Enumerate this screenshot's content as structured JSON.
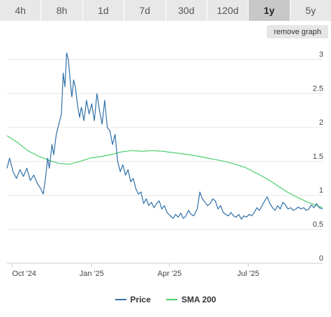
{
  "range_tabs": [
    {
      "label": "4h",
      "active": false
    },
    {
      "label": "8h",
      "active": false
    },
    {
      "label": "1d",
      "active": false
    },
    {
      "label": "7d",
      "active": false
    },
    {
      "label": "30d",
      "active": false
    },
    {
      "label": "120d",
      "active": false
    },
    {
      "label": "1y",
      "active": true
    },
    {
      "label": "5y",
      "active": false
    }
  ],
  "remove_graph_label": "remove graph",
  "colors": {
    "price": "#2f6fa8",
    "sma": "#4ccf6e",
    "grid": "#e6e6e6",
    "axis_text": "#444"
  },
  "chart_data": {
    "type": "line",
    "x_ticks": [
      "Oct '24",
      "Jan '25",
      "Apr '25",
      "Jul '25"
    ],
    "y_ticks": [
      "0",
      "0.5",
      "1",
      "1.5",
      "2",
      "2.5",
      "3"
    ],
    "ylim": [
      0,
      3.2
    ],
    "xlim": [
      "2024-09-25",
      "2025-09-25"
    ],
    "grid": true,
    "legend_position": "bottom",
    "series": [
      {
        "name": "Price",
        "points": [
          [
            "2024-09-25",
            1.4
          ],
          [
            "2024-09-28",
            1.55
          ],
          [
            "2024-10-02",
            1.35
          ],
          [
            "2024-10-06",
            1.25
          ],
          [
            "2024-10-10",
            1.38
          ],
          [
            "2024-10-14",
            1.28
          ],
          [
            "2024-10-18",
            1.4
          ],
          [
            "2024-10-22",
            1.22
          ],
          [
            "2024-10-26",
            1.3
          ],
          [
            "2024-10-30",
            1.18
          ],
          [
            "2024-11-03",
            1.1
          ],
          [
            "2024-11-06",
            1.02
          ],
          [
            "2024-11-09",
            1.3
          ],
          [
            "2024-11-11",
            1.55
          ],
          [
            "2024-11-13",
            1.4
          ],
          [
            "2024-11-16",
            1.75
          ],
          [
            "2024-11-18",
            1.6
          ],
          [
            "2024-11-21",
            1.9
          ],
          [
            "2024-11-24",
            2.05
          ],
          [
            "2024-11-27",
            2.2
          ],
          [
            "2024-11-29",
            2.8
          ],
          [
            "2024-12-01",
            2.6
          ],
          [
            "2024-12-03",
            3.1
          ],
          [
            "2024-12-05",
            3.0
          ],
          [
            "2024-12-07",
            2.7
          ],
          [
            "2024-12-09",
            2.45
          ],
          [
            "2024-12-11",
            2.7
          ],
          [
            "2024-12-13",
            2.6
          ],
          [
            "2024-12-16",
            2.3
          ],
          [
            "2024-12-18",
            2.15
          ],
          [
            "2024-12-20",
            2.3
          ],
          [
            "2024-12-23",
            2.1
          ],
          [
            "2024-12-26",
            2.4
          ],
          [
            "2024-12-29",
            2.2
          ],
          [
            "2025-01-01",
            2.35
          ],
          [
            "2025-01-04",
            2.1
          ],
          [
            "2025-01-07",
            2.5
          ],
          [
            "2025-01-10",
            2.25
          ],
          [
            "2025-01-13",
            2.05
          ],
          [
            "2025-01-16",
            2.4
          ],
          [
            "2025-01-19",
            2.0
          ],
          [
            "2025-01-22",
            1.95
          ],
          [
            "2025-01-25",
            1.75
          ],
          [
            "2025-01-28",
            1.9
          ],
          [
            "2025-01-31",
            1.5
          ],
          [
            "2025-02-03",
            1.35
          ],
          [
            "2025-02-06",
            1.45
          ],
          [
            "2025-02-09",
            1.3
          ],
          [
            "2025-02-12",
            1.38
          ],
          [
            "2025-02-15",
            1.2
          ],
          [
            "2025-02-18",
            1.25
          ],
          [
            "2025-02-21",
            1.1
          ],
          [
            "2025-02-24",
            1.02
          ],
          [
            "2025-02-27",
            1.05
          ],
          [
            "2025-03-02",
            0.88
          ],
          [
            "2025-03-05",
            0.95
          ],
          [
            "2025-03-08",
            0.85
          ],
          [
            "2025-03-11",
            0.9
          ],
          [
            "2025-03-14",
            0.82
          ],
          [
            "2025-03-17",
            0.88
          ],
          [
            "2025-03-20",
            0.92
          ],
          [
            "2025-03-23",
            0.8
          ],
          [
            "2025-03-26",
            0.85
          ],
          [
            "2025-03-29",
            0.75
          ],
          [
            "2025-04-02",
            0.7
          ],
          [
            "2025-04-05",
            0.66
          ],
          [
            "2025-04-08",
            0.72
          ],
          [
            "2025-04-11",
            0.68
          ],
          [
            "2025-04-14",
            0.74
          ],
          [
            "2025-04-17",
            0.66
          ],
          [
            "2025-04-20",
            0.7
          ],
          [
            "2025-04-23",
            0.78
          ],
          [
            "2025-04-26",
            0.72
          ],
          [
            "2025-04-29",
            0.7
          ],
          [
            "2025-05-03",
            0.8
          ],
          [
            "2025-05-06",
            1.05
          ],
          [
            "2025-05-09",
            0.95
          ],
          [
            "2025-05-12",
            0.9
          ],
          [
            "2025-05-15",
            0.85
          ],
          [
            "2025-05-18",
            0.88
          ],
          [
            "2025-05-21",
            0.95
          ],
          [
            "2025-05-24",
            0.92
          ],
          [
            "2025-05-27",
            0.8
          ],
          [
            "2025-05-30",
            0.85
          ],
          [
            "2025-06-02",
            0.75
          ],
          [
            "2025-06-05",
            0.72
          ],
          [
            "2025-06-08",
            0.7
          ],
          [
            "2025-06-11",
            0.75
          ],
          [
            "2025-06-14",
            0.7
          ],
          [
            "2025-06-17",
            0.68
          ],
          [
            "2025-06-20",
            0.72
          ],
          [
            "2025-06-23",
            0.65
          ],
          [
            "2025-06-26",
            0.7
          ],
          [
            "2025-06-29",
            0.68
          ],
          [
            "2025-07-02",
            0.72
          ],
          [
            "2025-07-05",
            0.7
          ],
          [
            "2025-07-08",
            0.75
          ],
          [
            "2025-07-11",
            0.82
          ],
          [
            "2025-07-14",
            0.78
          ],
          [
            "2025-07-17",
            0.85
          ],
          [
            "2025-07-20",
            0.92
          ],
          [
            "2025-07-23",
            0.98
          ],
          [
            "2025-07-26",
            0.88
          ],
          [
            "2025-07-29",
            0.82
          ],
          [
            "2025-08-01",
            0.78
          ],
          [
            "2025-08-04",
            0.85
          ],
          [
            "2025-08-07",
            0.8
          ],
          [
            "2025-08-10",
            0.9
          ],
          [
            "2025-08-13",
            0.86
          ],
          [
            "2025-08-16",
            0.8
          ],
          [
            "2025-08-19",
            0.82
          ],
          [
            "2025-08-22",
            0.78
          ],
          [
            "2025-08-25",
            0.8
          ],
          [
            "2025-08-28",
            0.83
          ],
          [
            "2025-08-31",
            0.8
          ],
          [
            "2025-09-03",
            0.82
          ],
          [
            "2025-09-06",
            0.78
          ],
          [
            "2025-09-09",
            0.8
          ],
          [
            "2025-09-12",
            0.86
          ],
          [
            "2025-09-15",
            0.82
          ],
          [
            "2025-09-18",
            0.88
          ],
          [
            "2025-09-21",
            0.82
          ],
          [
            "2025-09-25",
            0.8
          ]
        ]
      },
      {
        "name": "SMA 200",
        "points": [
          [
            "2024-09-25",
            1.88
          ],
          [
            "2024-10-07",
            1.78
          ],
          [
            "2024-10-19",
            1.66
          ],
          [
            "2024-10-31",
            1.58
          ],
          [
            "2024-11-12",
            1.52
          ],
          [
            "2024-11-24",
            1.47
          ],
          [
            "2024-12-06",
            1.46
          ],
          [
            "2024-12-18",
            1.5
          ],
          [
            "2024-12-30",
            1.55
          ],
          [
            "2025-01-11",
            1.57
          ],
          [
            "2025-01-23",
            1.6
          ],
          [
            "2025-02-04",
            1.64
          ],
          [
            "2025-02-16",
            1.66
          ],
          [
            "2025-02-28",
            1.65
          ],
          [
            "2025-03-12",
            1.66
          ],
          [
            "2025-03-24",
            1.65
          ],
          [
            "2025-04-05",
            1.63
          ],
          [
            "2025-04-17",
            1.61
          ],
          [
            "2025-04-29",
            1.59
          ],
          [
            "2025-05-11",
            1.56
          ],
          [
            "2025-05-23",
            1.53
          ],
          [
            "2025-06-04",
            1.5
          ],
          [
            "2025-06-16",
            1.46
          ],
          [
            "2025-06-28",
            1.41
          ],
          [
            "2025-07-10",
            1.33
          ],
          [
            "2025-07-22",
            1.25
          ],
          [
            "2025-08-03",
            1.15
          ],
          [
            "2025-08-15",
            1.05
          ],
          [
            "2025-08-27",
            0.97
          ],
          [
            "2025-09-08",
            0.9
          ],
          [
            "2025-09-18",
            0.85
          ],
          [
            "2025-09-25",
            0.82
          ]
        ]
      }
    ],
    "x_tick_dates": [
      "2024-10-01",
      "2025-01-01",
      "2025-04-01",
      "2025-07-01"
    ]
  }
}
